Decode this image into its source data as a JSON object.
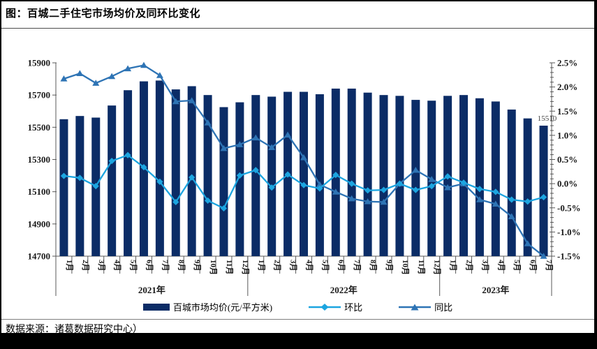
{
  "page": {
    "title": "图：百城二手住宅市场均价及同环比变化",
    "source_note": "数据来源：诸葛数据研究中心）"
  },
  "legend": {
    "bar_label": "百城市场均价(元/平方米)",
    "mom_label": "环比",
    "yoy_label": "同比"
  },
  "colors": {
    "bar": "#0b2c66",
    "mom_line": "#1ca5e0",
    "yoy_line": "#2e74b5",
    "axis": "#595959",
    "tick_text": "#1a1a1a",
    "annotation_text": "#3f3f3f"
  },
  "chart_data": {
    "type": "combo-bar-line",
    "title": "百城二手住宅市场均价及同环比变化",
    "categories": [
      "1月",
      "2月",
      "3月",
      "4月",
      "5月",
      "6月",
      "7月",
      "8月",
      "9月",
      "10月",
      "11月",
      "12月",
      "1月",
      "2月",
      "3月",
      "4月",
      "5月",
      "6月",
      "7月",
      "8月",
      "9月",
      "10月",
      "11月",
      "12月",
      "1月",
      "2月",
      "3月",
      "4月",
      "5月",
      "6月",
      "7月"
    ],
    "year_groups": [
      {
        "label": "2021年",
        "count": 12
      },
      {
        "label": "2022年",
        "count": 12
      },
      {
        "label": "2023年",
        "count": 7
      }
    ],
    "series": [
      {
        "name": "百城市场均价(元/平方米)",
        "type": "bar",
        "axis": "left",
        "values": [
          15550,
          15570,
          15560,
          15635,
          15730,
          15785,
          15790,
          15735,
          15755,
          15700,
          15625,
          15655,
          15700,
          15690,
          15720,
          15720,
          15705,
          15740,
          15740,
          15715,
          15700,
          15695,
          15670,
          15665,
          15695,
          15700,
          15680,
          15660,
          15610,
          15555,
          15510
        ]
      },
      {
        "name": "环比",
        "type": "line",
        "marker": "diamond",
        "axis": "right",
        "values": [
          0.16,
          0.12,
          -0.05,
          0.47,
          0.59,
          0.34,
          0.04,
          -0.38,
          0.13,
          -0.35,
          -0.51,
          0.17,
          0.28,
          -0.08,
          0.19,
          -0.03,
          -0.1,
          0.18,
          0,
          -0.14,
          -0.13,
          0,
          -0.13,
          -0.05,
          0.15,
          0.02,
          -0.11,
          -0.17,
          -0.33,
          -0.37,
          -0.28
        ]
      },
      {
        "name": "同比",
        "type": "line",
        "marker": "triangle",
        "axis": "right",
        "values": [
          2.17,
          2.28,
          2.08,
          2.22,
          2.38,
          2.45,
          2.24,
          1.7,
          1.72,
          1.26,
          0.73,
          0.81,
          0.95,
          0.75,
          1.01,
          0.54,
          -0.02,
          -0.17,
          -0.31,
          -0.37,
          -0.38,
          0,
          0.28,
          0.09,
          -0.08,
          0,
          -0.33,
          -0.42,
          -0.68,
          -1.24,
          -1.5
        ]
      }
    ],
    "left_axis": {
      "min": 14700,
      "max": 15900,
      "step": 200,
      "ticks": [
        "14700",
        "14900",
        "15100",
        "15300",
        "15500",
        "15700",
        "15900"
      ]
    },
    "right_axis": {
      "min": -1.5,
      "max": 2.5,
      "step": 0.5,
      "minor_step": 0.1,
      "ticks": [
        "-1.5%",
        "-1.0%",
        "-0.5%",
        "0.0%",
        "0.5%",
        "1.0%",
        "1.5%",
        "2.0%",
        "2.5%"
      ]
    },
    "annotation": {
      "text": "15510",
      "category_index": 30
    },
    "grid": false,
    "legend_position": "bottom"
  }
}
